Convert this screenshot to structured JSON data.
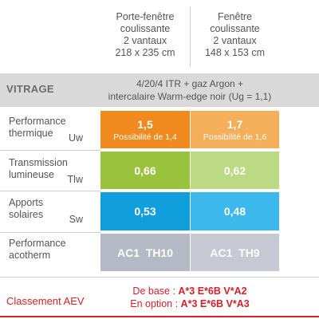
{
  "columns": [
    {
      "line1": "Porte-fenêtre",
      "line2": "coulissante",
      "line3": "2 vantaux",
      "line4": "218 x 235 cm"
    },
    {
      "line1": "Fenêtre",
      "line2": "coulissante",
      "line3": "2 vantaux",
      "line4": "148 x 153 cm"
    }
  ],
  "vitrage": {
    "label": "VITRAGE",
    "line1": "4/20/4 ITR + gaz Argon +",
    "line2": "intercalaire Warm-edge noir (Ug = 1,1)"
  },
  "rows": [
    {
      "label1": "Performance",
      "label2": "thermique",
      "symbol": "Uw",
      "values": [
        {
          "main": "1,5",
          "sub": "Possibilité de 1,4"
        },
        {
          "main": "1,7",
          "sub": "Possibilité de 1,6"
        }
      ]
    },
    {
      "label1": "Transmission",
      "label2": "lumineuse",
      "symbol": "Tlw",
      "values": [
        {
          "main": "0,66"
        },
        {
          "main": "0,62"
        }
      ]
    },
    {
      "label1": "Apports",
      "label2": "solaires",
      "symbol": "Sw",
      "values": [
        {
          "main": "0,53"
        },
        {
          "main": "0,48"
        }
      ]
    },
    {
      "label1": "Performance",
      "label2": "acotherm",
      "symbol": "",
      "values": [
        {
          "main": "AC1  TH10"
        },
        {
          "main": "AC1  TH9"
        }
      ]
    }
  ],
  "aev": {
    "label": "Classement AEV",
    "base_prefix": "De base : ",
    "base_value": "A*3 E*6B V*A2",
    "option_prefix": "En option : ",
    "option_value": "A*3 E*6B V*A3"
  },
  "colors": {
    "thermique_c1": "#f08a1e",
    "thermique_c2": "#f5ae5a",
    "lumineuse_c1": "#99c33c",
    "lumineuse_c2": "#bcd983",
    "solaires_c1": "#109fdc",
    "solaires_c2": "#3db8ec",
    "acotherm_c1": "#b5b8c5",
    "acotherm_c2": "#c6c9d3",
    "aev_red": "#d6202a"
  }
}
